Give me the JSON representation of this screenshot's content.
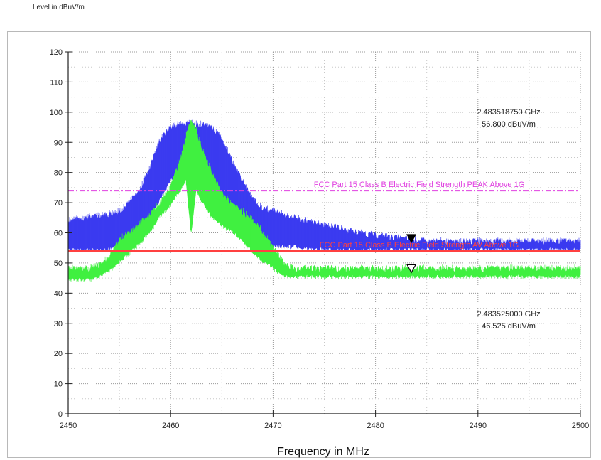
{
  "header": {
    "ylabel": "Level in dBuV/m"
  },
  "chart_data": {
    "type": "line",
    "title": "",
    "xlabel": "Frequency in MHz",
    "ylabel": "Level in dBuV/m",
    "xlim": [
      2450,
      2500
    ],
    "ylim": [
      0,
      120
    ],
    "xticks": [
      2450,
      2460,
      2470,
      2480,
      2490,
      2500
    ],
    "yticks": [
      0,
      10,
      20,
      30,
      40,
      50,
      60,
      70,
      80,
      90,
      100,
      110,
      120
    ],
    "grid": true,
    "limits": [
      {
        "name": "FCC Part 15 Class B Electric Field Strength PEAK Above 1G",
        "value": 74,
        "color": "#e040e0"
      },
      {
        "name": "FCC Part 15 Class B Electric Field Strength AV Above 1G",
        "value": 54,
        "color": "#ff4040"
      }
    ],
    "series": [
      {
        "color": "#3b3bf0",
        "x": [
          2450,
          2452,
          2454,
          2455,
          2456,
          2457,
          2458,
          2459,
          2460,
          2461,
          2462,
          2463,
          2464,
          2465,
          2466,
          2467,
          2468,
          2469,
          2470,
          2472,
          2474,
          2476,
          2478,
          2480,
          2485,
          2490,
          2495,
          2500
        ],
        "upper": [
          64,
          65,
          66,
          67,
          70,
          74,
          82,
          91,
          95,
          96,
          96,
          96,
          95,
          91,
          84,
          77,
          71,
          68,
          67,
          65,
          63,
          62,
          60,
          59,
          57,
          57,
          57,
          57
        ],
        "lower": [
          55,
          55,
          55,
          56,
          57,
          60,
          65,
          72,
          78,
          82,
          84,
          83,
          79,
          72,
          66,
          61,
          59,
          57,
          56,
          56,
          55,
          55,
          55,
          55,
          55,
          55,
          55,
          55
        ]
      },
      {
        "color": "#40f040",
        "x": [
          2450,
          2452,
          2453,
          2454,
          2455,
          2456,
          2457,
          2458,
          2459,
          2460,
          2461,
          2461.5,
          2462,
          2462.5,
          2463,
          2464,
          2465,
          2466,
          2467,
          2468,
          2469,
          2470,
          2471,
          2472,
          2475,
          2480,
          2485,
          2490,
          2495,
          2500
        ],
        "upper": [
          48,
          48,
          49,
          52,
          58,
          60,
          63,
          66,
          70,
          75,
          85,
          92,
          97,
          94,
          88,
          80,
          73,
          69,
          67,
          64,
          60,
          55,
          50,
          48,
          48,
          48,
          48,
          48,
          48,
          48
        ],
        "lower": [
          45,
          45,
          46,
          48,
          51,
          54,
          57,
          61,
          66,
          70,
          75,
          78,
          60,
          75,
          71,
          66,
          63,
          61,
          58,
          54,
          51,
          49,
          46,
          46,
          46,
          46,
          46,
          46,
          46,
          46
        ]
      }
    ],
    "markers": [
      {
        "x": 2483.5,
        "y": 58,
        "filled": true,
        "label_freq": "2.483518750 GHz",
        "label_level": "56.800 dBuV/m"
      },
      {
        "x": 2483.5,
        "y": 48,
        "filled": false,
        "label_freq": "2.483525000 GHz",
        "label_level": "46.525 dBuV/m"
      }
    ]
  }
}
